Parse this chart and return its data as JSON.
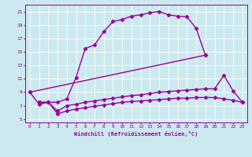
{
  "xlabel": "Windchill (Refroidissement éolien,°C)",
  "bg_color": "#cce9f0",
  "line_color": "#990099",
  "xlim": [
    -0.5,
    23.5
  ],
  "ylim": [
    4.5,
    22
  ],
  "xticks": [
    0,
    1,
    2,
    3,
    4,
    5,
    6,
    7,
    8,
    9,
    10,
    11,
    12,
    13,
    14,
    15,
    16,
    17,
    18,
    19,
    20,
    21,
    22,
    23
  ],
  "yticks": [
    5,
    7,
    9,
    11,
    13,
    15,
    17,
    19,
    21
  ],
  "series": [
    {
      "x": [
        0,
        1,
        2,
        3,
        4,
        5,
        6,
        7,
        8,
        9,
        10,
        11,
        12,
        13,
        14,
        15,
        16,
        17,
        18,
        19
      ],
      "y": [
        9.0,
        7.2,
        7.5,
        7.5,
        8.0,
        11.2,
        15.5,
        16.0,
        18.0,
        19.5,
        19.8,
        20.3,
        20.5,
        20.8,
        21.0,
        20.5,
        20.3,
        20.2,
        18.5,
        14.5
      ],
      "marker": "D",
      "markersize": 2.5,
      "linewidth": 1.0
    },
    {
      "x": [
        0,
        19
      ],
      "y": [
        9.0,
        14.5
      ],
      "marker": "D",
      "markersize": 2.5,
      "linewidth": 1.0
    },
    {
      "x": [
        1,
        2,
        3,
        4,
        5,
        6,
        7,
        8,
        9,
        10,
        11,
        12,
        13,
        14,
        15,
        16,
        17,
        18,
        19,
        20,
        21,
        22,
        23
      ],
      "y": [
        7.5,
        7.5,
        6.2,
        7.0,
        7.2,
        7.5,
        7.7,
        7.9,
        8.1,
        8.3,
        8.5,
        8.6,
        8.8,
        9.0,
        9.1,
        9.2,
        9.3,
        9.4,
        9.5,
        9.5,
        11.5,
        9.2,
        7.5
      ],
      "marker": "D",
      "markersize": 2.5,
      "linewidth": 1.0
    },
    {
      "x": [
        1,
        2,
        3,
        4,
        5,
        6,
        7,
        8,
        9,
        10,
        11,
        12,
        13,
        14,
        15,
        16,
        17,
        18,
        19,
        20,
        21,
        22,
        23
      ],
      "y": [
        7.5,
        7.5,
        5.8,
        6.2,
        6.5,
        6.7,
        6.9,
        7.1,
        7.3,
        7.5,
        7.6,
        7.7,
        7.8,
        7.9,
        8.0,
        8.1,
        8.1,
        8.2,
        8.2,
        8.2,
        8.0,
        7.8,
        7.5
      ],
      "marker": "D",
      "markersize": 2.5,
      "linewidth": 1.0
    }
  ]
}
